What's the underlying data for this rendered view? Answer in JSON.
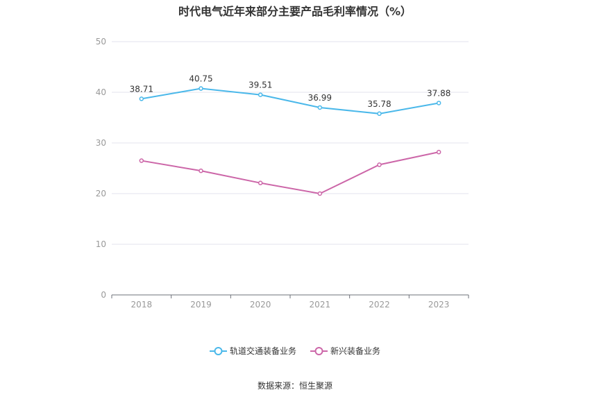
{
  "source_note": "数据来源：恒生聚源",
  "chart_data": {
    "type": "line",
    "title": "时代电气近年来部分主要产品毛利率情况（%）",
    "xlabel": "",
    "ylabel": "",
    "x": [
      "2018",
      "2019",
      "2020",
      "2021",
      "2022",
      "2023"
    ],
    "ylim": [
      0,
      50
    ],
    "yticks": [
      "0",
      "10",
      "20",
      "30",
      "40",
      "50"
    ],
    "grid": true,
    "legend_position": "bottom",
    "series": [
      {
        "name": "轨道交通装备业务",
        "color": "#4ab8ea",
        "values": [
          38.71,
          40.75,
          39.51,
          36.99,
          35.78,
          37.88
        ],
        "labels": [
          "38.71",
          "40.75",
          "39.51",
          "36.99",
          "35.78",
          "37.88"
        ]
      },
      {
        "name": "新兴装备业务",
        "color": "#cc66a8",
        "values": [
          26.5,
          24.5,
          22.1,
          20.0,
          25.7,
          28.2
        ]
      }
    ]
  }
}
